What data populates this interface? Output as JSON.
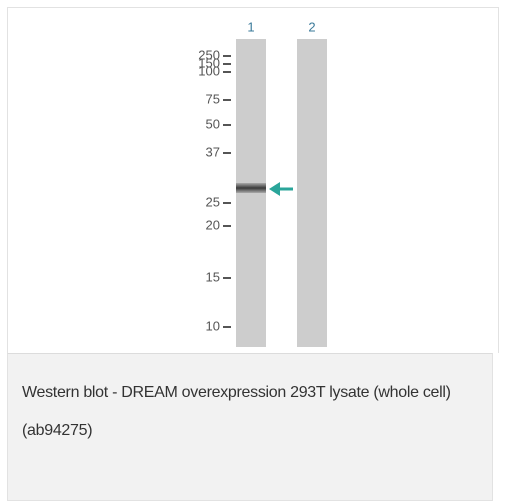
{
  "lanes": [
    "1",
    "2"
  ],
  "markers": [
    "250",
    "150",
    "100",
    "75",
    "50",
    "37",
    "25",
    "20",
    "15",
    "10"
  ],
  "caption": "Western blot - DREAM overexpression 293T lysate (whole cell) (ab94275)"
}
